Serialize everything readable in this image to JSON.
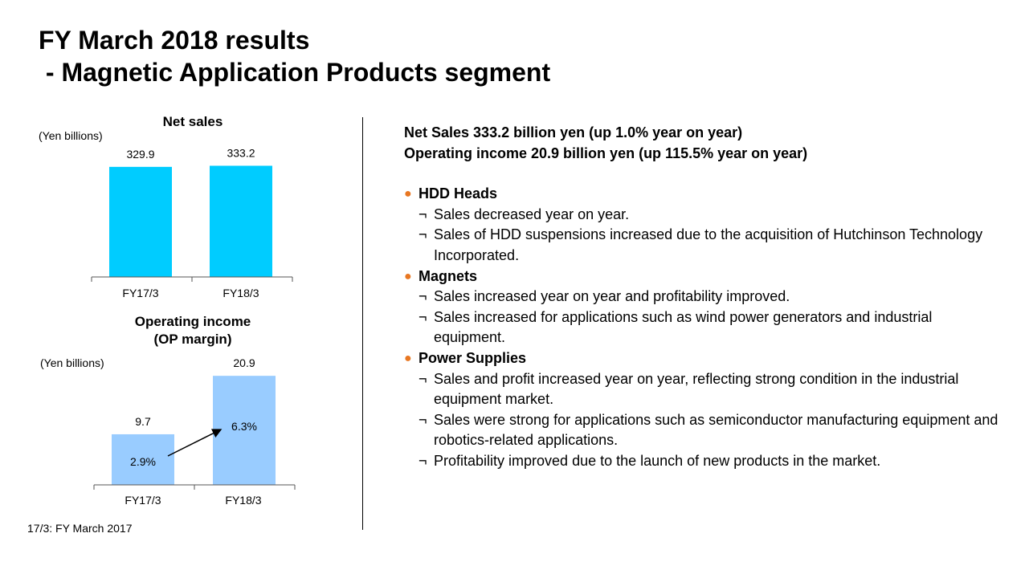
{
  "slide": {
    "title": "FY March 2018 results\n - Magnetic Application Products segment",
    "footnote": "17/3: FY March 2017"
  },
  "chart_data": [
    {
      "type": "bar",
      "title": "Net sales",
      "unit_label": "(Yen billions)",
      "categories": [
        "FY17/3",
        "FY18/3"
      ],
      "values": [
        329.9,
        333.2
      ],
      "value_labels": [
        "329.9",
        "333.2"
      ],
      "color": "#00ccff"
    },
    {
      "type": "bar",
      "title_lines": [
        "Operating income",
        "(OP margin)"
      ],
      "unit_label": "(Yen billions)",
      "categories": [
        "FY17/3",
        "FY18/3"
      ],
      "values": [
        9.7,
        20.9
      ],
      "value_labels": [
        "9.7",
        "20.9"
      ],
      "margins": [
        "2.9%",
        "6.3%"
      ],
      "color": "#99ccff"
    }
  ],
  "summary": {
    "line1": "Net Sales 333.2 billion yen (up 1.0% year on year)",
    "line2": "Operating income 20.9 billion yen (up 115.5% year on year)"
  },
  "bullet_glyph": "●",
  "item_glyph": "¬",
  "sections": [
    {
      "heading": "HDD Heads",
      "items": [
        "Sales decreased year on year.",
        "Sales of HDD suspensions increased due to the acquisition of Hutchinson Technology Incorporated."
      ]
    },
    {
      "heading": "Magnets",
      "items": [
        "Sales increased year on year and profitability improved.",
        "Sales increased for applications such as wind power generators and industrial equipment."
      ]
    },
    {
      "heading": "Power Supplies",
      "items": [
        "Sales and profit increased year on year, reflecting strong condition in the industrial equipment market.",
        "Sales were strong for applications such as semiconductor manufacturing equipment and robotics-related applications.",
        "Profitability improved due to the launch of new products in the market."
      ]
    }
  ]
}
